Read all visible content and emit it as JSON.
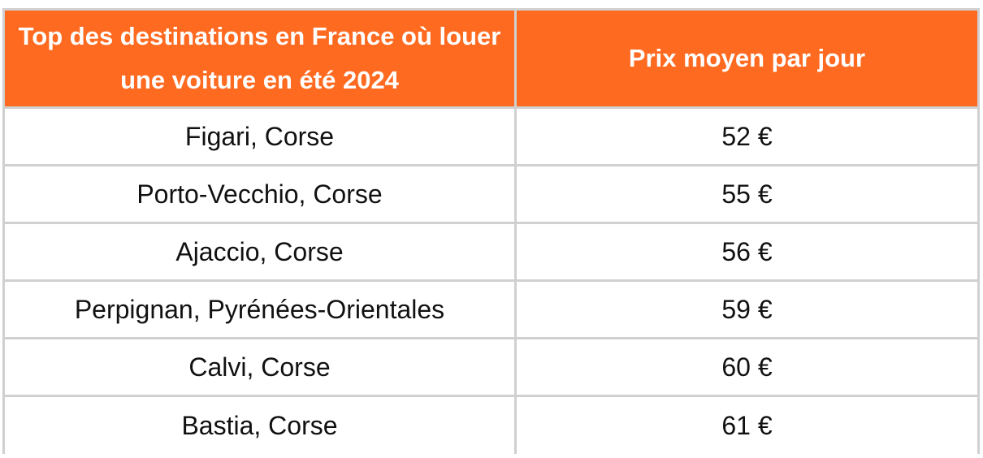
{
  "table": {
    "headers": [
      "Top des destinations en France où louer une voiture en été 2024",
      "Prix moyen par jour"
    ],
    "rows": [
      [
        "Figari, Corse",
        "52 €"
      ],
      [
        "Porto-Vecchio, Corse",
        "55 €"
      ],
      [
        "Ajaccio, Corse",
        "56 €"
      ],
      [
        "Perpignan, Pyrénées-Orientales",
        "59 €"
      ],
      [
        "Calvi, Corse",
        "60 €"
      ],
      [
        "Bastia, Corse",
        "61 €"
      ]
    ],
    "colors": {
      "header_bg": "#ff6a21",
      "header_text": "#ffffff",
      "grid": "#d0d0d0"
    }
  }
}
